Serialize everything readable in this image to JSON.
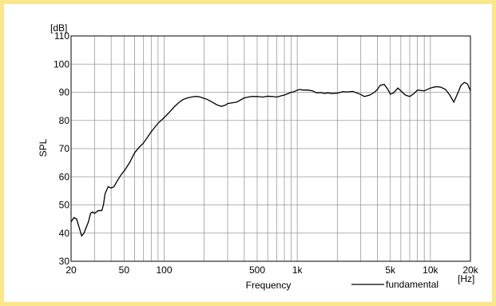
{
  "colors": {
    "border": "#fbe68c",
    "grid": "#9a9a9a",
    "curve": "#000000"
  },
  "chart_data": {
    "type": "line",
    "title": "",
    "xlabel": "Frequency",
    "ylabel": "SPL",
    "xunit": "[Hz]",
    "yunit": "[dB]",
    "xscale": "log",
    "xlim": [
      20,
      20000
    ],
    "ylim": [
      30,
      110
    ],
    "grid": true,
    "legend": "bottom-right",
    "x_ticks": [
      {
        "v": 20,
        "label": "20"
      },
      {
        "v": 50,
        "label": "50"
      },
      {
        "v": 100,
        "label": "100"
      },
      {
        "v": 500,
        "label": "500"
      },
      {
        "v": 1000,
        "label": "1k"
      },
      {
        "v": 5000,
        "label": "5k"
      },
      {
        "v": 10000,
        "label": "10k"
      },
      {
        "v": 20000,
        "label": "20k"
      }
    ],
    "y_ticks": [
      {
        "v": 30,
        "label": "30"
      },
      {
        "v": 40,
        "label": "40"
      },
      {
        "v": 50,
        "label": "50"
      },
      {
        "v": 60,
        "label": "60"
      },
      {
        "v": 70,
        "label": "70"
      },
      {
        "v": 80,
        "label": "80"
      },
      {
        "v": 90,
        "label": "90"
      },
      {
        "v": 100,
        "label": "100"
      },
      {
        "v": 110,
        "label": "110"
      }
    ],
    "series": [
      {
        "name": "fundamental",
        "x": [
          20,
          21,
          22,
          23,
          24,
          25,
          27,
          28,
          29,
          30,
          32,
          34,
          35,
          36,
          38,
          40,
          42,
          45,
          48,
          50,
          55,
          60,
          65,
          70,
          80,
          90,
          100,
          110,
          120,
          130,
          140,
          150,
          160,
          170,
          180,
          190,
          200,
          210,
          230,
          250,
          270,
          290,
          300,
          320,
          350,
          400,
          450,
          500,
          550,
          600,
          650,
          700,
          750,
          800,
          850,
          900,
          950,
          1000,
          1050,
          1100,
          1200,
          1300,
          1400,
          1500,
          1600,
          1700,
          1800,
          2000,
          2200,
          2400,
          2600,
          2800,
          3000,
          3200,
          3500,
          3800,
          4000,
          4200,
          4500,
          4800,
          5000,
          5300,
          5700,
          6000,
          6500,
          7000,
          7500,
          8000,
          9000,
          10000,
          11000,
          12000,
          13000,
          14000,
          15000,
          16000,
          17000,
          18000,
          19000,
          20000
        ],
        "y": [
          44,
          45.5,
          45,
          42,
          39,
          40,
          44,
          47,
          47.5,
          47,
          48,
          48,
          50,
          54,
          56.5,
          56,
          56.5,
          59,
          61,
          62,
          65,
          68.5,
          70.5,
          72,
          76,
          79,
          81,
          83,
          85,
          86.5,
          87.5,
          88,
          88.3,
          88.5,
          88.5,
          88.2,
          87.8,
          87.5,
          86.5,
          85.5,
          85,
          85.5,
          86,
          86.2,
          86.5,
          88,
          88.5,
          88.5,
          88.3,
          88.6,
          88.5,
          88.3,
          88.7,
          89,
          89.5,
          90,
          90.2,
          90.8,
          91,
          90.8,
          90.8,
          90.5,
          89.8,
          89.9,
          89.6,
          89.8,
          89.6,
          89.7,
          90.2,
          90.1,
          90.3,
          89.8,
          89.2,
          88.5,
          89,
          90,
          91,
          92.5,
          92.8,
          91,
          89.3,
          89.8,
          91.5,
          90.5,
          89,
          88.5,
          89.5,
          90.8,
          90.5,
          91.5,
          92,
          91.8,
          91,
          89,
          86.5,
          89.5,
          92.5,
          93.5,
          93,
          90.5
        ]
      }
    ]
  }
}
